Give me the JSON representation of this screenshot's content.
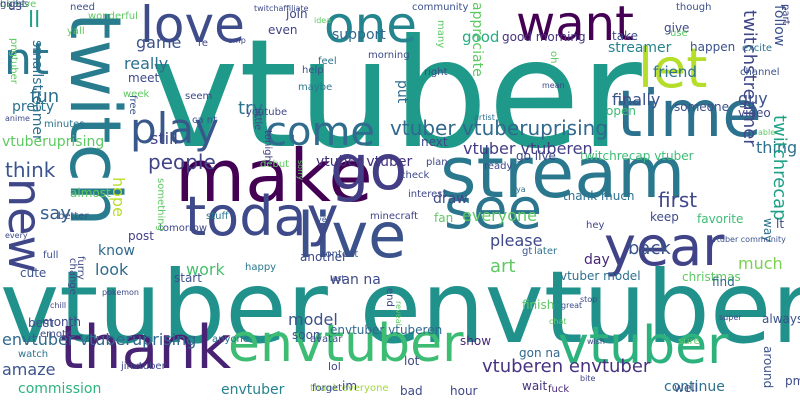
{
  "word_cloud": {
    "background": "#ffffff",
    "words": [
      {
        "text": "vtuber",
        "color": "#1f9a8a"
      },
      {
        "text": "vtuber envtuber",
        "color": "#21918c"
      },
      {
        "text": "stream",
        "color": "#2a788e"
      },
      {
        "text": "make",
        "color": "#440154"
      },
      {
        "text": "live",
        "color": "#3b528b"
      },
      {
        "text": "time",
        "color": "#2c728e"
      },
      {
        "text": "today",
        "color": "#3e4a89"
      },
      {
        "text": "go",
        "color": "#433e85"
      },
      {
        "text": "year",
        "color": "#404387"
      },
      {
        "text": "see",
        "color": "#2b758e"
      },
      {
        "text": "envtuber",
        "color": "#3dbc74"
      },
      {
        "text": "vtuber",
        "color": "#2db27d"
      },
      {
        "text": "thank",
        "color": "#482374"
      },
      {
        "text": "twitch",
        "color": "#287c8e"
      },
      {
        "text": "love",
        "color": "#3e4c8a"
      },
      {
        "text": "one",
        "color": "#25858e"
      },
      {
        "text": "want",
        "color": "#440154"
      },
      {
        "text": "let",
        "color": "#b5de2b"
      },
      {
        "text": "come",
        "color": "#2f6c8e"
      },
      {
        "text": "play",
        "color": "#38588c"
      },
      {
        "text": "nt",
        "color": "#2a788e"
      },
      {
        "text": "new",
        "color": "#3f4788"
      },
      {
        "text": "vtuber vtuberuprising",
        "color": "#31688e"
      },
      {
        "text": "vtuber vtuberen",
        "color": "#433d84"
      },
      {
        "text": "vtuber vtuber",
        "color": "#46337e"
      },
      {
        "text": "streamer",
        "color": "#26828e"
      },
      {
        "text": "friend",
        "color": "#2c718e"
      },
      {
        "text": "first",
        "color": "#3f4889"
      },
      {
        "text": "back",
        "color": "#3a548c"
      },
      {
        "text": "much",
        "color": "#7ad151"
      },
      {
        "text": "look",
        "color": "#2f6b8e"
      },
      {
        "text": "work",
        "color": "#46c06f"
      },
      {
        "text": "know",
        "color": "#30698e"
      },
      {
        "text": "say",
        "color": "#355f8d"
      },
      {
        "text": "think",
        "color": "#3a548c"
      },
      {
        "text": "people",
        "color": "#414487"
      },
      {
        "text": "still",
        "color": "#404688"
      },
      {
        "text": "really",
        "color": "#2d708e"
      },
      {
        "text": "game",
        "color": "#3b528b"
      },
      {
        "text": "fun",
        "color": "#2d708e"
      },
      {
        "text": "pretty",
        "color": "#2c728e"
      },
      {
        "text": "smallstreamer",
        "color": "#2d708e"
      },
      {
        "text": "vtuberuprising",
        "color": "#5ec962"
      },
      {
        "text": "ll",
        "color": "#1fa187"
      },
      {
        "text": "hope",
        "color": "#b8de29"
      },
      {
        "text": "try",
        "color": "#2c728e"
      },
      {
        "text": "maybe",
        "color": "#2a788e"
      },
      {
        "text": "help",
        "color": "#3b528b"
      },
      {
        "text": "support",
        "color": "#31688e"
      },
      {
        "text": "good",
        "color": "#27ad81"
      },
      {
        "text": "good morning",
        "color": "#46337e"
      },
      {
        "text": "even",
        "color": "#404387"
      },
      {
        "text": "join",
        "color": "#3e4a89"
      },
      {
        "text": "finally",
        "color": "#3b528b"
      },
      {
        "text": "guy",
        "color": "#3b528b"
      },
      {
        "text": "thing",
        "color": "#2d708e"
      },
      {
        "text": "twitchrecap",
        "color": "#1fa187"
      },
      {
        "text": "twitchstreamer",
        "color": "#3f4788"
      },
      {
        "text": "twitchrecap vtuber",
        "color": "#3dbc74"
      },
      {
        "text": "go live",
        "color": "#3f4788"
      },
      {
        "text": "draw",
        "color": "#3e4a89"
      },
      {
        "text": "everyone",
        "color": "#5ec962"
      },
      {
        "text": "minecraft",
        "color": "#404387"
      },
      {
        "text": "stuff",
        "color": "#2a788e"
      },
      {
        "text": "please",
        "color": "#3f4788"
      },
      {
        "text": "art",
        "color": "#5ec962"
      },
      {
        "text": "day",
        "color": "#482878"
      },
      {
        "text": "vtuber model",
        "color": "#2d708e"
      },
      {
        "text": "christmas",
        "color": "#5ec962"
      },
      {
        "text": "find",
        "color": "#31688e"
      },
      {
        "text": "wan na",
        "color": "#3e4a89"
      },
      {
        "text": "model",
        "color": "#3b528b"
      },
      {
        "text": "start",
        "color": "#3b528b"
      },
      {
        "text": "envtuber vtuberen",
        "color": "#31688e"
      },
      {
        "text": "lol",
        "color": "#3f4788"
      },
      {
        "text": "show",
        "color": "#482878"
      },
      {
        "text": "vtuberen envtuber",
        "color": "#46327e"
      },
      {
        "text": "gon na",
        "color": "#31688e"
      },
      {
        "text": "wait",
        "color": "#46327e"
      },
      {
        "text": "continue",
        "color": "#2c728e"
      },
      {
        "text": "well",
        "color": "#3b528b"
      },
      {
        "text": "envtuber",
        "color": "#26828e"
      },
      {
        "text": "commission",
        "color": "#2db27d"
      },
      {
        "text": "envtuber vtuberuprising",
        "color": "#31688e"
      },
      {
        "text": "amaze",
        "color": "#3b528b"
      },
      {
        "text": "watch",
        "color": "#2c728e"
      },
      {
        "text": "month",
        "color": "#414487"
      },
      {
        "text": "best",
        "color": "#3b528b"
      },
      {
        "text": "cute",
        "color": "#3b528b"
      },
      {
        "text": "happy",
        "color": "#2a788e"
      },
      {
        "text": "tomorrow",
        "color": "#3e4a89"
      },
      {
        "text": "post",
        "color": "#433e85"
      },
      {
        "text": "ca nt",
        "color": "#3b528b"
      },
      {
        "text": "little",
        "color": "#3e4a89"
      },
      {
        "text": "tonight",
        "color": "#404387"
      },
      {
        "text": "youtube",
        "color": "#3f4788"
      },
      {
        "text": "debut",
        "color": "#5ec962"
      },
      {
        "text": "next",
        "color": "#3f4788"
      },
      {
        "text": "check",
        "color": "#3e4a89"
      },
      {
        "text": "put",
        "color": "#2f6c8e"
      },
      {
        "text": "right",
        "color": "#3f4788"
      },
      {
        "text": "open",
        "color": "#3dbc74"
      },
      {
        "text": "someone",
        "color": "#3b528b"
      },
      {
        "text": "video",
        "color": "#3f4788"
      },
      {
        "text": "favorite",
        "color": "#3dbc74"
      },
      {
        "text": "thank much",
        "color": "#2c728e"
      },
      {
        "text": "hey",
        "color": "#3f4788"
      },
      {
        "text": "keep",
        "color": "#3e4a89"
      },
      {
        "text": "lt",
        "color": "#3f4788"
      },
      {
        "text": "way",
        "color": "#2c728e"
      },
      {
        "text": "always",
        "color": "#3b528b"
      },
      {
        "text": "around",
        "color": "#3b528b"
      },
      {
        "text": "pm est",
        "color": "#3e4a89"
      },
      {
        "text": "finish",
        "color": "#5ec962"
      },
      {
        "text": "bad",
        "color": "#3e4a89"
      },
      {
        "text": "hour",
        "color": "#3f4788"
      },
      {
        "text": "fuck",
        "color": "#482878"
      },
      {
        "text": "thank everyone",
        "color": "#a0da39"
      },
      {
        "text": "im",
        "color": "#3e4a89"
      },
      {
        "text": "anyone",
        "color": "#2c728e"
      },
      {
        "text": "soon",
        "color": "#3b528b"
      },
      {
        "text": "lot",
        "color": "#3f4788"
      },
      {
        "text": "another",
        "color": "#3e4a89"
      },
      {
        "text": "happen",
        "color": "#3b528b"
      },
      {
        "text": "excite",
        "color": "#2c728e"
      },
      {
        "text": "follow",
        "color": "#3b528b"
      },
      {
        "text": "take",
        "color": "#3e4a89"
      },
      {
        "text": "give",
        "color": "#3f4788"
      },
      {
        "text": "use",
        "color": "#5ec962"
      },
      {
        "text": "morning",
        "color": "#3e4a89"
      },
      {
        "text": "feel",
        "color": "#2c728e"
      },
      {
        "text": "seem",
        "color": "#3f4788"
      },
      {
        "text": "meet",
        "color": "#3e4a89"
      },
      {
        "text": "week",
        "color": "#5ec962"
      },
      {
        "text": "minutes",
        "color": "#2c728e"
      },
      {
        "text": "better",
        "color": "#3b528b"
      },
      {
        "text": "almost",
        "color": "#5ec962"
      },
      {
        "text": "full",
        "color": "#3b528b"
      },
      {
        "text": "us",
        "color": "#3f4788"
      },
      {
        "text": "need",
        "color": "#3b528b"
      },
      {
        "text": "though",
        "color": "#3b528b"
      },
      {
        "text": "community",
        "color": "#3b528b"
      },
      {
        "text": "twitchaffiliate",
        "color": "#3e4a89"
      },
      {
        "text": "wonderful",
        "color": "#5ec962"
      },
      {
        "text": "many",
        "color": "#5ec962"
      },
      {
        "text": "appreciate",
        "color": "#5ec962"
      },
      {
        "text": "amp",
        "color": "#3e4a89"
      },
      {
        "text": "re",
        "color": "#3f4788"
      },
      {
        "text": "idea",
        "color": "#5ec962"
      },
      {
        "text": "yall",
        "color": "#5ec962"
      },
      {
        "text": "pngtuber",
        "color": "#5ec962"
      },
      {
        "text": "oh",
        "color": "#5ec962"
      },
      {
        "text": "mean",
        "color": "#3e4a89"
      },
      {
        "text": "artist",
        "color": "#2c728e"
      },
      {
        "text": "plan",
        "color": "#3f4788"
      },
      {
        "text": "ready",
        "color": "#3f4788"
      },
      {
        "text": "ya",
        "color": "#2c728e"
      },
      {
        "text": "interest",
        "color": "#3f4788"
      },
      {
        "text": "fan",
        "color": "#5ec962"
      },
      {
        "text": "later",
        "color": "#2c728e"
      },
      {
        "text": "gt",
        "color": "#3b528b"
      },
      {
        "text": "great",
        "color": "#3b528b"
      },
      {
        "text": "chat",
        "color": "#5ec962"
      },
      {
        "text": "wish",
        "color": "#3e4a89"
      },
      {
        "text": "bite",
        "color": "#3f4788"
      },
      {
        "text": "super",
        "color": "#3e4a89"
      },
      {
        "text": "sure",
        "color": "#5ec962"
      },
      {
        "text": "stop",
        "color": "#3e4a89"
      },
      {
        "text": "able",
        "color": "#5ec962"
      },
      {
        "text": "vtuber community",
        "color": "#3b528b"
      },
      {
        "text": "channel",
        "color": "#3b528b"
      },
      {
        "text": "part",
        "color": "#3e4a89"
      },
      {
        "text": "free",
        "color": "#3b528b"
      },
      {
        "text": "anime",
        "color": "#3e4a89"
      },
      {
        "text": "something",
        "color": "#5ec962"
      },
      {
        "text": "every",
        "color": "#3e4a89"
      },
      {
        "text": "furry",
        "color": "#3e4a89"
      },
      {
        "text": "change",
        "color": "#3e4a89"
      },
      {
        "text": "pokemon",
        "color": "#3e4a89"
      },
      {
        "text": "emote",
        "color": "#3e4a89"
      },
      {
        "text": "chill",
        "color": "#3f4788"
      },
      {
        "text": "jinvtuber",
        "color": "#3e4a89"
      },
      {
        "text": "forget",
        "color": "#3b528b"
      },
      {
        "text": "avatar",
        "color": "#3e4a89"
      },
      {
        "text": "reveal",
        "color": "#5ec962"
      },
      {
        "text": "end",
        "color": "#3e4a89"
      },
      {
        "text": "content",
        "color": "#3b528b"
      },
      {
        "text": "last",
        "color": "#3e4a89"
      },
      {
        "text": "yet",
        "color": "#3b528b"
      },
      {
        "text": "sorry",
        "color": "#5ec962"
      },
      {
        "text": "guess",
        "color": "#3e4a89"
      },
      {
        "text": "believe",
        "color": "#5ec962"
      },
      {
        "text": "night",
        "color": "#3e4a89"
      }
    ]
  }
}
